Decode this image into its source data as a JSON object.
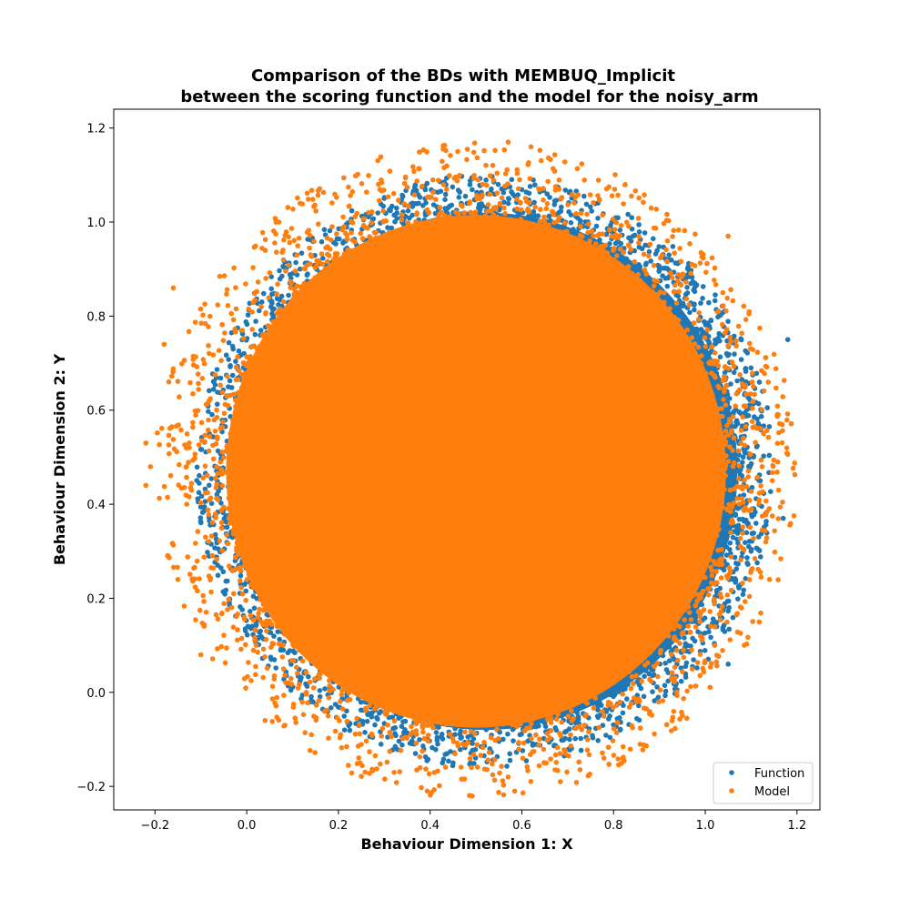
{
  "chart_data": {
    "type": "scatter",
    "title_line1": "Comparison of the BDs with MEMBUQ_Implicit",
    "title_line2": "between the scoring function and the model for the noisy_arm",
    "xlabel": "Behaviour Dimension 1: X",
    "ylabel": "Behaviour Dimension 2: Y",
    "xlim": [
      -0.29,
      1.25
    ],
    "ylim": [
      -0.25,
      1.24
    ],
    "x_ticks": [
      -0.2,
      0.0,
      0.2,
      0.4,
      0.6,
      0.8,
      1.0,
      1.2
    ],
    "x_tick_labels": [
      "−0.2",
      "0.0",
      "0.2",
      "0.4",
      "0.6",
      "0.8",
      "1.0",
      "1.2"
    ],
    "y_ticks": [
      -0.2,
      0.0,
      0.2,
      0.4,
      0.6,
      0.8,
      1.0,
      1.2
    ],
    "y_tick_labels": [
      "−0.2",
      "0.0",
      "0.2",
      "0.4",
      "0.6",
      "0.8",
      "1.0",
      "1.2"
    ],
    "grid": false,
    "legend_position": "bottom-right",
    "series": [
      {
        "name": "Function",
        "color": "#1f77b4",
        "distribution": {
          "center": [
            0.52,
            0.47
          ],
          "core_radius": 0.55,
          "edge_radius": 0.63
        }
      },
      {
        "name": "Model",
        "color": "#ff7f0e",
        "distribution": {
          "center": [
            0.5,
            0.47
          ],
          "core_radius": 0.545,
          "edge_radius": 0.7
        }
      }
    ],
    "outlier_points": {
      "Function": [
        [
          1.18,
          0.75
        ],
        [
          1.17,
          0.37
        ],
        [
          1.1,
          0.3
        ],
        [
          1.05,
          0.06
        ],
        [
          0.45,
          -0.15
        ],
        [
          0.53,
          -0.12
        ],
        [
          1.12,
          0.45
        ]
      ],
      "Model": [
        [
          -0.22,
          0.53
        ],
        [
          -0.22,
          0.44
        ],
        [
          -0.21,
          0.48
        ],
        [
          -0.18,
          0.74
        ],
        [
          -0.16,
          0.86
        ],
        [
          -0.17,
          0.66
        ],
        [
          -0.15,
          0.24
        ],
        [
          -0.1,
          0.08
        ],
        [
          0.04,
          -0.06
        ],
        [
          0.57,
          1.17
        ],
        [
          0.46,
          1.15
        ],
        [
          0.62,
          1.16
        ],
        [
          1.05,
          0.97
        ],
        [
          1.16,
          0.43
        ],
        [
          1.14,
          0.24
        ],
        [
          0.57,
          -0.18
        ],
        [
          0.49,
          -0.16
        ],
        [
          0.13,
          0.0
        ],
        [
          0.88,
          0.1
        ]
      ]
    }
  }
}
